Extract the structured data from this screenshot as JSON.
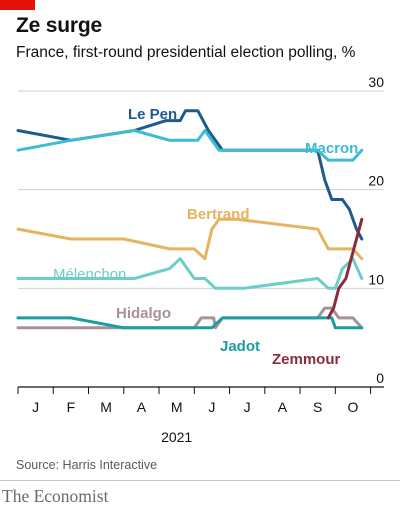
{
  "header": {
    "title": "Ze surge",
    "subtitle": "France, first-round presidential election polling, %"
  },
  "footer": {
    "source": "Source: Harris Interactive",
    "brand": "The Economist"
  },
  "colors": {
    "accent": "#e3120b",
    "grid": "#c8d2d8",
    "axis": "#121212"
  },
  "chart_data": {
    "type": "line",
    "title": "Ze surge",
    "subtitle": "France, first-round presidential election polling, %",
    "ylim": [
      0,
      30
    ],
    "yticks": [
      0,
      10,
      20,
      30
    ],
    "xlim": [
      0,
      9.7
    ],
    "month_labels": [
      "J",
      "F",
      "M",
      "A",
      "M",
      "J",
      "J",
      "A",
      "S",
      "O"
    ],
    "year_label": "2021",
    "grid": true,
    "legend": "direct labels on lines",
    "series": [
      {
        "name": "Le Pen",
        "color": "#1e5a8e",
        "points": [
          [
            0,
            26
          ],
          [
            1.5,
            25
          ],
          [
            3.3,
            26
          ],
          [
            4.2,
            27
          ],
          [
            4.6,
            27
          ],
          [
            4.75,
            28
          ],
          [
            5.1,
            28
          ],
          [
            5.4,
            26
          ],
          [
            5.8,
            24
          ],
          [
            8.2,
            24
          ],
          [
            8.5,
            24
          ],
          [
            8.7,
            21
          ],
          [
            8.9,
            19
          ],
          [
            9.2,
            19
          ],
          [
            9.4,
            18
          ],
          [
            9.6,
            16
          ],
          [
            9.75,
            15
          ]
        ]
      },
      {
        "name": "Macron",
        "color": "#3ebcd2",
        "points": [
          [
            0,
            24
          ],
          [
            1.5,
            25
          ],
          [
            3.3,
            26
          ],
          [
            4.3,
            25
          ],
          [
            5.1,
            25
          ],
          [
            5.3,
            26
          ],
          [
            5.7,
            24
          ],
          [
            8.2,
            24
          ],
          [
            8.5,
            24
          ],
          [
            8.8,
            23
          ],
          [
            9.5,
            23
          ],
          [
            9.75,
            24
          ]
        ]
      },
      {
        "name": "Bertrand",
        "color": "#e6b460",
        "points": [
          [
            0,
            16
          ],
          [
            1.5,
            15
          ],
          [
            3.0,
            15
          ],
          [
            4.3,
            14
          ],
          [
            5.0,
            14
          ],
          [
            5.3,
            13
          ],
          [
            5.5,
            16
          ],
          [
            5.7,
            17
          ],
          [
            6.2,
            17
          ],
          [
            8.5,
            16
          ],
          [
            8.8,
            14
          ],
          [
            9.5,
            14
          ],
          [
            9.75,
            13
          ]
        ]
      },
      {
        "name": "Mélenchon",
        "color": "#6dcdc8",
        "points": [
          [
            0,
            11
          ],
          [
            3.3,
            11
          ],
          [
            4.3,
            12
          ],
          [
            4.6,
            13
          ],
          [
            5.0,
            11
          ],
          [
            5.3,
            11
          ],
          [
            5.6,
            10
          ],
          [
            6.4,
            10
          ],
          [
            8.5,
            11
          ],
          [
            8.8,
            10
          ],
          [
            9.0,
            10
          ],
          [
            9.2,
            12
          ],
          [
            9.5,
            13
          ],
          [
            9.75,
            11
          ]
        ]
      },
      {
        "name": "Hidalgo",
        "color": "#a8929a",
        "points": [
          [
            0,
            6
          ],
          [
            5.0,
            6
          ],
          [
            5.2,
            7
          ],
          [
            5.55,
            7
          ],
          [
            5.6,
            6
          ],
          [
            5.8,
            7
          ],
          [
            8.3,
            7
          ],
          [
            8.5,
            7
          ],
          [
            8.7,
            8
          ],
          [
            8.9,
            8
          ],
          [
            9.1,
            7
          ],
          [
            9.5,
            7
          ],
          [
            9.75,
            6
          ]
        ]
      },
      {
        "name": "Jadot",
        "color": "#1b9ea2",
        "points": [
          [
            0,
            7
          ],
          [
            1.5,
            7
          ],
          [
            3.0,
            6
          ],
          [
            5.5,
            6
          ],
          [
            5.8,
            7
          ],
          [
            8.6,
            7
          ],
          [
            8.9,
            7
          ],
          [
            9.0,
            6
          ],
          [
            9.5,
            6
          ],
          [
            9.75,
            6
          ]
        ]
      },
      {
        "name": "Zemmour",
        "color": "#8c2a3e",
        "points": [
          [
            8.8,
            7
          ],
          [
            8.95,
            8
          ],
          [
            9.1,
            10
          ],
          [
            9.3,
            11
          ],
          [
            9.45,
            13
          ],
          [
            9.6,
            15
          ],
          [
            9.75,
            17
          ]
        ]
      }
    ],
    "annotations": [
      {
        "text": "Le Pen",
        "series": "Le Pen"
      },
      {
        "text": "Macron",
        "series": "Macron"
      },
      {
        "text": "Bertrand",
        "series": "Bertrand"
      },
      {
        "text": "Mélenchon",
        "series": "Mélenchon"
      },
      {
        "text": "Hidalgo",
        "series": "Hidalgo"
      },
      {
        "text": "Jadot",
        "series": "Jadot"
      },
      {
        "text": "Zemmour",
        "series": "Zemmour"
      }
    ]
  }
}
